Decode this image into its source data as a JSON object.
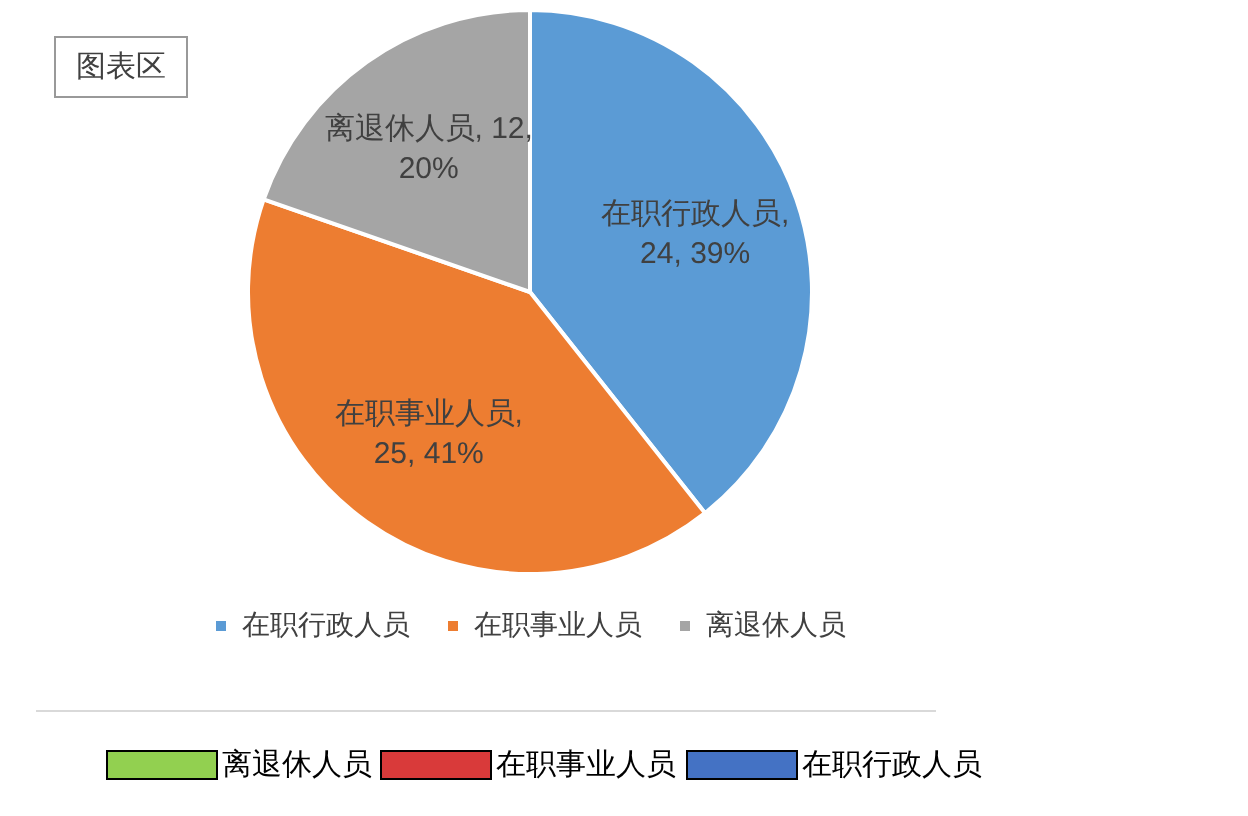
{
  "chart_data": {
    "type": "pie",
    "categories": [
      "在职行政人员",
      "在职事业人员",
      "离退休人员"
    ],
    "values": [
      24,
      25,
      12
    ],
    "colors": [
      "#5b9bd5",
      "#ed7d31",
      "#a5a5a5"
    ],
    "value_labels": [
      "在职行政人员, 24, 39%",
      "在职事业人员, 25, 41%",
      "离退休人员, 12, 20%"
    ],
    "legend": "bottom",
    "annotations": [
      "图表区",
      "离退休人员",
      "在职事业人员",
      "在职行政人员"
    ]
  }
}
